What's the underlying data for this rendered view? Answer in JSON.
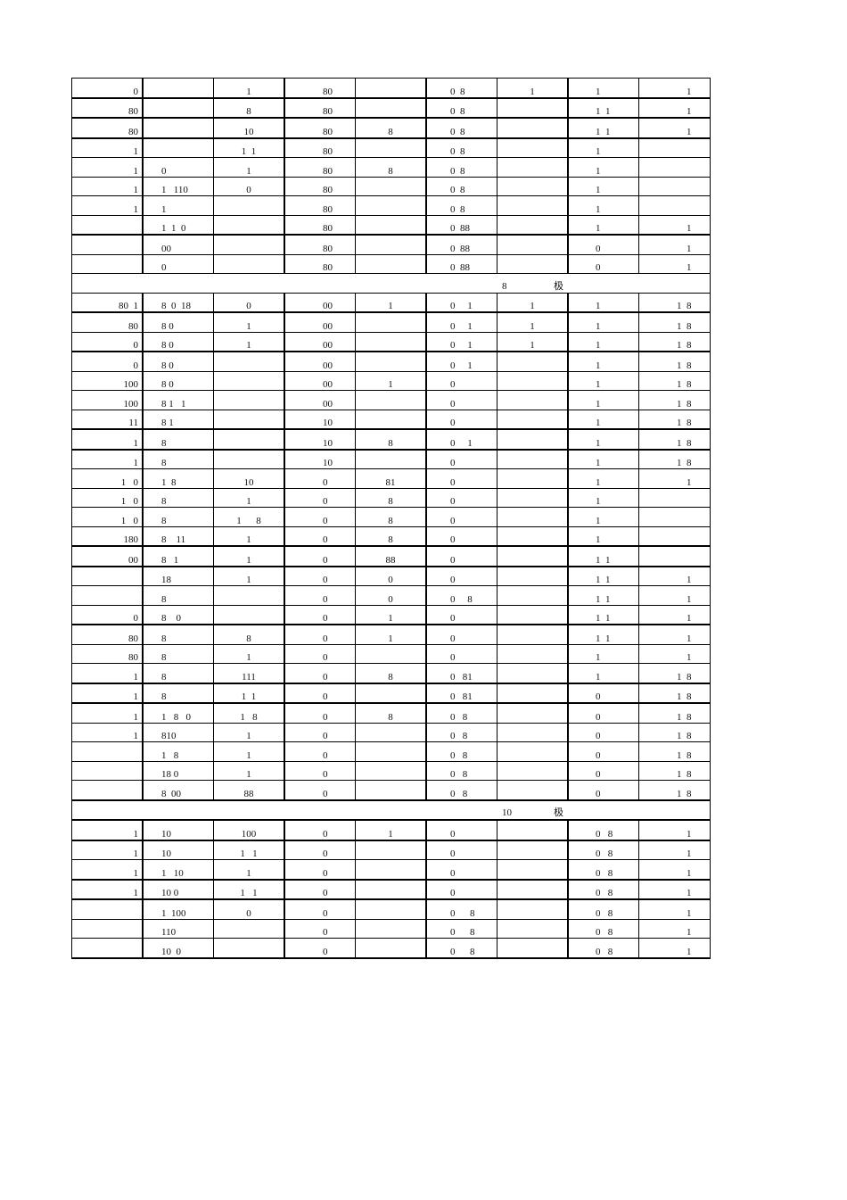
{
  "table": {
    "rows": [
      {
        "cells": [
          "0",
          "",
          "1",
          "80",
          "",
          "0  8",
          "1",
          "1",
          "1"
        ]
      },
      {
        "cells": [
          "80",
          "",
          "8",
          "80",
          "",
          "0  8",
          "",
          "1  1",
          "1"
        ]
      },
      {
        "cells": [
          "80",
          "",
          "10",
          "80",
          "8",
          "0  8",
          "",
          "1  1",
          "1"
        ]
      },
      {
        "cells": [
          "1",
          "",
          "1  1",
          "80",
          "",
          "0  8",
          "",
          "1",
          ""
        ]
      },
      {
        "cells": [
          "1",
          "0",
          "1",
          "80",
          "8",
          "0  8",
          "",
          "1",
          ""
        ]
      },
      {
        "cells": [
          "1",
          "1   110",
          "0",
          "80",
          "",
          "0  8",
          "",
          "1",
          ""
        ]
      },
      {
        "cells": [
          "1",
          "1",
          "",
          "80",
          "",
          "0  8",
          "",
          "1",
          ""
        ]
      },
      {
        "cells": [
          "",
          "1  1  0",
          "",
          "80",
          "",
          "0  88",
          "",
          "1",
          "1"
        ]
      },
      {
        "cells": [
          "",
          "00",
          "",
          "80",
          "",
          "0  88",
          "",
          "0",
          "1"
        ]
      },
      {
        "cells": [
          "",
          "0",
          "",
          "80",
          "",
          "0  88",
          "",
          "0",
          "1"
        ]
      },
      {
        "section": true,
        "num": "8",
        "char": "极"
      },
      {
        "cells": [
          "80  1",
          "8  0  18",
          "0",
          "00",
          "1",
          "0     1",
          "1",
          "1",
          "1  8"
        ]
      },
      {
        "cells": [
          "80",
          "8 0",
          "1",
          "00",
          "",
          "0     1",
          "1",
          "1",
          "1  8"
        ]
      },
      {
        "cells": [
          "0",
          "8 0",
          "1",
          "00",
          "",
          "0     1",
          "1",
          "1",
          "1  8"
        ]
      },
      {
        "cells": [
          "0",
          "8 0",
          "",
          "00",
          "",
          "0     1",
          "",
          "1",
          "1  8"
        ]
      },
      {
        "cells": [
          "100",
          "8 0",
          "",
          "00",
          "1",
          "0",
          "",
          "1",
          "1  8"
        ]
      },
      {
        "cells": [
          "100",
          "8 1   1",
          "",
          "00",
          "",
          "0",
          "",
          "1",
          "1  8"
        ]
      },
      {
        "cells": [
          "11",
          "8 1",
          "",
          "10",
          "",
          "0",
          "",
          "1",
          "1  8"
        ]
      },
      {
        "cells": [
          "1",
          "8",
          "",
          "10",
          "8",
          "0     1",
          "",
          "1",
          "1  8"
        ]
      },
      {
        "cells": [
          "1",
          "8",
          "",
          "10",
          "",
          "0",
          "",
          "1",
          "1  8"
        ]
      },
      {
        "cells": [
          "1   0",
          "1  8",
          "10",
          "0",
          "81",
          "0",
          "",
          "1",
          "1"
        ]
      },
      {
        "cells": [
          "1   0",
          "8",
          "1",
          "0",
          "8",
          "0",
          "",
          "1",
          ""
        ]
      },
      {
        "cells": [
          "1   0",
          "8",
          "1      8",
          "0",
          "8",
          "0",
          "",
          "1",
          ""
        ]
      },
      {
        "cells": [
          "180",
          "8    11",
          "1",
          "0",
          "8",
          "0",
          "",
          "1",
          ""
        ]
      },
      {
        "cells": [
          "00",
          "8   1",
          "1",
          "0",
          "88",
          "0",
          "",
          "1  1",
          ""
        ]
      },
      {
        "cells": [
          "",
          "18",
          "1",
          "0",
          "0",
          "0",
          "",
          "1  1",
          "1"
        ]
      },
      {
        "cells": [
          "",
          "8",
          "",
          "0",
          "0",
          "0     8",
          "",
          "1  1",
          "1"
        ]
      },
      {
        "cells": [
          "0",
          "8    0",
          "",
          "0",
          "1",
          "0",
          "",
          "1  1",
          "1"
        ]
      },
      {
        "cells": [
          "80",
          "8",
          "8",
          "0",
          "1",
          "0",
          "",
          "1  1",
          "1"
        ]
      },
      {
        "cells": [
          "80",
          "8",
          "1",
          "0",
          "",
          "0",
          "",
          "1",
          "1"
        ]
      },
      {
        "cells": [
          "1",
          "8",
          "111",
          "0",
          "8",
          "0   81",
          "",
          "1",
          "1  8"
        ]
      },
      {
        "cells": [
          "1",
          "8",
          "1  1",
          "0",
          "",
          "0   81",
          "",
          "0",
          "1  8"
        ]
      },
      {
        "cells": [
          "1",
          "1   8   0",
          "1   8",
          "0",
          "8",
          "0   8",
          "",
          "0",
          "1  8"
        ]
      },
      {
        "cells": [
          "1",
          "810",
          "1",
          "0",
          "",
          "0   8",
          "",
          "0",
          "1  8"
        ]
      },
      {
        "cells": [
          "",
          "1   8",
          "1",
          "0",
          "",
          "0   8",
          "",
          "0",
          "1  8"
        ]
      },
      {
        "cells": [
          "",
          "18 0",
          "1",
          "0",
          "",
          "0   8",
          "",
          "0",
          "1  8"
        ]
      },
      {
        "cells": [
          "",
          "8  00",
          "88",
          "0",
          "",
          "0   8",
          "",
          "0",
          "1  8"
        ]
      },
      {
        "section": true,
        "num": "10",
        "char": "极"
      },
      {
        "cells": [
          "1",
          "10",
          "100",
          "0",
          "1",
          "0",
          "",
          "0   8",
          "1"
        ]
      },
      {
        "cells": [
          "1",
          "10",
          "1   1",
          "0",
          "",
          "0",
          "",
          "0   8",
          "1"
        ]
      },
      {
        "cells": [
          "1",
          "1   10",
          "1",
          "0",
          "",
          "0",
          "",
          "0   8",
          "1"
        ]
      },
      {
        "cells": [
          "1",
          "10 0",
          "1   1",
          "0",
          "",
          "0",
          "",
          "0   8",
          "1"
        ]
      },
      {
        "cells": [
          "",
          "1  100",
          "0",
          "0",
          "",
          "0      8",
          "",
          "0   8",
          "1"
        ]
      },
      {
        "cells": [
          "",
          "110",
          "",
          "0",
          "",
          "0      8",
          "",
          "0   8",
          "1"
        ]
      },
      {
        "cells": [
          "",
          "10  0",
          "",
          "0",
          "",
          "0      8",
          "",
          "0   8",
          "1"
        ]
      }
    ]
  }
}
